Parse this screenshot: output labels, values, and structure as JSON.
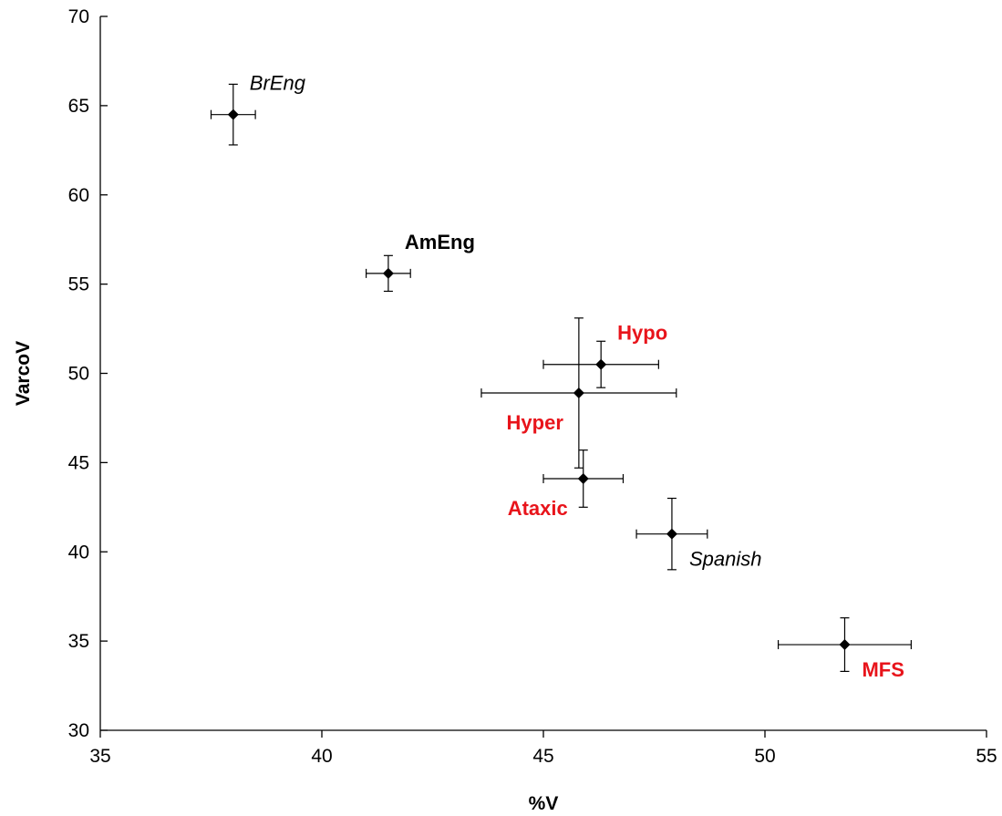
{
  "colors": {
    "axis": "#000000",
    "marker": "#000000",
    "error": "#000000",
    "label_black": "#000000",
    "label_red": "#e8141b"
  },
  "chart_data": {
    "type": "scatter",
    "title": "",
    "xlabel": "%V",
    "ylabel": "VarcoV",
    "xlim": [
      35,
      55
    ],
    "ylim": [
      30,
      70
    ],
    "x_ticks": [
      35,
      40,
      45,
      50,
      55
    ],
    "y_ticks": [
      30,
      35,
      40,
      45,
      50,
      55,
      60,
      65,
      70
    ],
    "grid": false,
    "marker": "diamond",
    "points": [
      {
        "label": "BrEng",
        "x": 38.0,
        "y": 64.5,
        "x_err": 0.5,
        "y_err": 1.7,
        "label_color": "#000000",
        "label_style": "italic",
        "label_weight": "normal",
        "label_pos": "upper-right"
      },
      {
        "label": "AmEng",
        "x": 41.5,
        "y": 55.6,
        "x_err": 0.5,
        "y_err": 1.0,
        "label_color": "#000000",
        "label_style": "normal",
        "label_weight": "bold",
        "label_pos": "upper-right"
      },
      {
        "label": "Hypo",
        "x": 46.3,
        "y": 50.5,
        "x_err": 1.3,
        "y_err": 1.3,
        "label_color": "#e8141b",
        "label_style": "normal",
        "label_weight": "bold",
        "label_pos": "upper-right"
      },
      {
        "label": "Hyper",
        "x": 45.8,
        "y": 48.9,
        "x_err": 2.2,
        "y_err": 4.2,
        "label_color": "#e8141b",
        "label_style": "normal",
        "label_weight": "bold",
        "label_pos": "lower-left"
      },
      {
        "label": "Ataxic",
        "x": 45.9,
        "y": 44.1,
        "x_err": 0.9,
        "y_err": 1.6,
        "label_color": "#e8141b",
        "label_style": "normal",
        "label_weight": "bold",
        "label_pos": "lower-left"
      },
      {
        "label": "Spanish",
        "x": 47.9,
        "y": 41.0,
        "x_err": 0.8,
        "y_err": 2.0,
        "label_color": "#000000",
        "label_style": "italic",
        "label_weight": "normal",
        "label_pos": "lower-right"
      },
      {
        "label": "MFS",
        "x": 51.8,
        "y": 34.8,
        "x_err": 1.5,
        "y_err": 1.5,
        "label_color": "#e8141b",
        "label_style": "normal",
        "label_weight": "bold",
        "label_pos": "lower-right"
      }
    ]
  }
}
